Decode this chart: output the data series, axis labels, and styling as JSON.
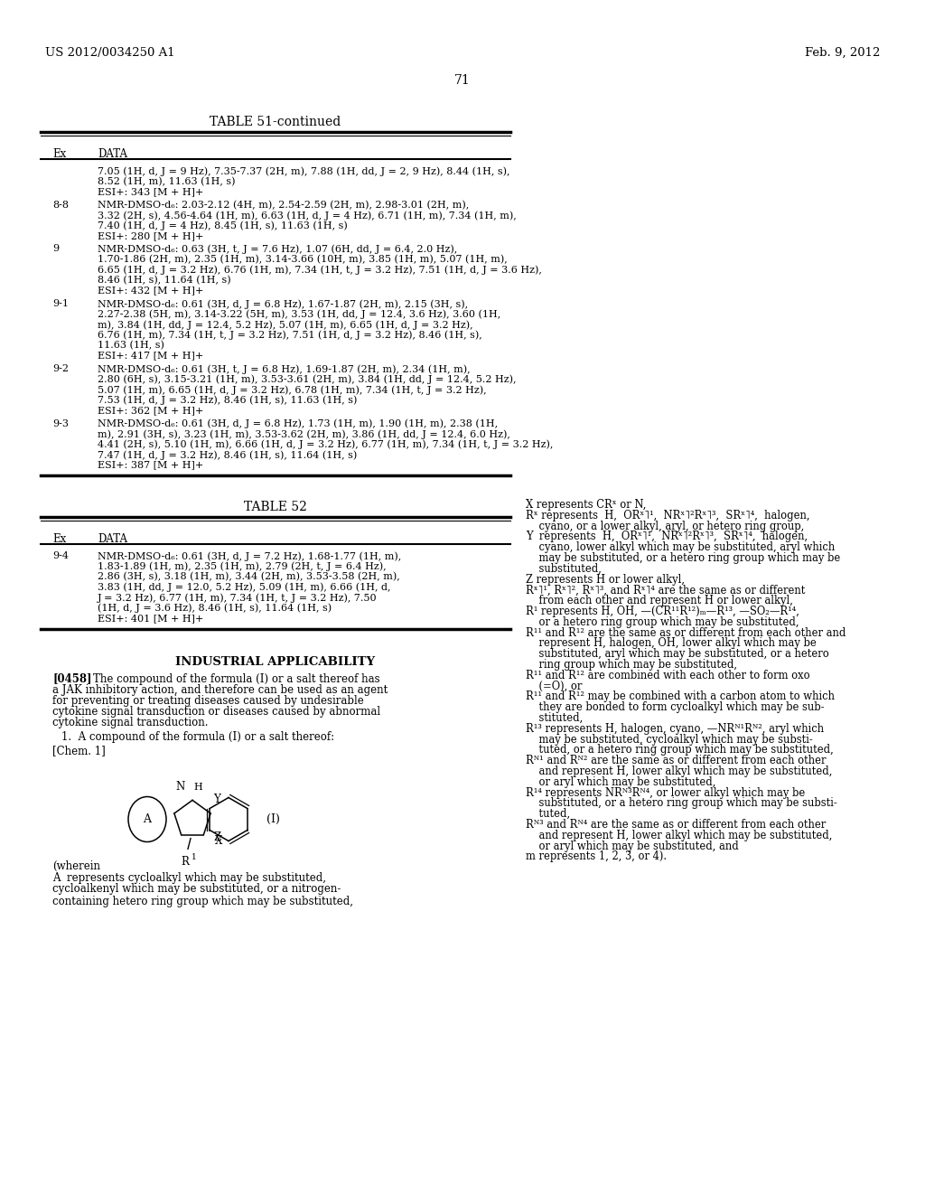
{
  "background_color": "#ffffff",
  "page_number": "71",
  "header_left": "US 2012/0034250 A1",
  "header_right": "Feb. 9, 2012",
  "table51_title": "TABLE 51-continued",
  "table51_rows": [
    {
      "ex": "",
      "data": [
        "7.05 (1H, d, J = 9 Hz), 7.35-7.37 (2H, m), 7.88 (1H, dd, J = 2, 9 Hz), 8.44 (1H, s),",
        "8.52 (1H, m), 11.63 (1H, s)",
        "ESI+: 343 [M + H]+"
      ]
    },
    {
      "ex": "8-8",
      "data": [
        "NMR-DMSO-d₆: 2.03-2.12 (4H, m), 2.54-2.59 (2H, m), 2.98-3.01 (2H, m),",
        "3.32 (2H, s), 4.56-4.64 (1H, m), 6.63 (1H, d, J = 4 Hz), 6.71 (1H, m), 7.34 (1H, m),",
        "7.40 (1H, d, J = 4 Hz), 8.45 (1H, s), 11.63 (1H, s)",
        "ESI+: 280 [M + H]+"
      ]
    },
    {
      "ex": "9",
      "data": [
        "NMR-DMSO-d₆: 0.63 (3H, t, J = 7.6 Hz), 1.07 (6H, dd, J = 6.4, 2.0 Hz),",
        "1.70-1.86 (2H, m), 2.35 (1H, m), 3.14-3.66 (10H, m), 3.85 (1H, m), 5.07 (1H, m),",
        "6.65 (1H, d, J = 3.2 Hz), 6.76 (1H, m), 7.34 (1H, t, J = 3.2 Hz), 7.51 (1H, d, J = 3.6 Hz),",
        "8.46 (1H, s), 11.64 (1H, s)",
        "ESI+: 432 [M + H]+"
      ]
    },
    {
      "ex": "9-1",
      "data": [
        "NMR-DMSO-d₆: 0.61 (3H, d, J = 6.8 Hz), 1.67-1.87 (2H, m), 2.15 (3H, s),",
        "2.27-2.38 (5H, m), 3.14-3.22 (5H, m), 3.53 (1H, dd, J = 12.4, 3.6 Hz), 3.60 (1H,",
        "m), 3.84 (1H, dd, J = 12.4, 5.2 Hz), 5.07 (1H, m), 6.65 (1H, d, J = 3.2 Hz),",
        "6.76 (1H, m), 7.34 (1H, t, J = 3.2 Hz), 7.51 (1H, d, J = 3.2 Hz), 8.46 (1H, s),",
        "11.63 (1H, s)",
        "ESI+: 417 [M + H]+"
      ]
    },
    {
      "ex": "9-2",
      "data": [
        "NMR-DMSO-d₆: 0.61 (3H, t, J = 6.8 Hz), 1.69-1.87 (2H, m), 2.34 (1H, m),",
        "2.80 (6H, s), 3.15-3.21 (1H, m), 3.53-3.61 (2H, m), 3.84 (1H, dd, J = 12.4, 5.2 Hz),",
        "5.07 (1H, m), 6.65 (1H, d, J = 3.2 Hz), 6.78 (1H, m), 7.34 (1H, t, J = 3.2 Hz),",
        "7.53 (1H, d, J = 3.2 Hz), 8.46 (1H, s), 11.63 (1H, s)",
        "ESI+: 362 [M + H]+"
      ]
    },
    {
      "ex": "9-3",
      "data": [
        "NMR-DMSO-d₆: 0.61 (3H, d, J = 6.8 Hz), 1.73 (1H, m), 1.90 (1H, m), 2.38 (1H,",
        "m), 2.91 (3H, s), 3.23 (1H, m), 3.53-3.62 (2H, m), 3.86 (1H, dd, J = 12.4, 6.0 Hz),",
        "4.41 (2H, s), 5.10 (1H, m), 6.66 (1H, d, J = 3.2 Hz), 6.77 (1H, m), 7.34 (1H, t, J = 3.2 Hz),",
        "7.47 (1H, d, J = 3.2 Hz), 8.46 (1H, s), 11.64 (1H, s)",
        "ESI+: 387 [M + H]+"
      ]
    }
  ],
  "table52_title": "TABLE 52",
  "table52_rows": [
    {
      "ex": "9-4",
      "data": [
        "NMR-DMSO-d₆: 0.61 (3H, d, J = 7.2 Hz), 1.68-1.77 (1H, m),",
        "1.83-1.89 (1H, m), 2.35 (1H, m), 2.79 (2H, t, J = 6.4 Hz),",
        "2.86 (3H, s), 3.18 (1H, m), 3.44 (2H, m), 3.53-3.58 (2H, m),",
        "3.83 (1H, dd, J = 12.0, 5.2 Hz), 5.09 (1H, m), 6.66 (1H, d,",
        "J = 3.2 Hz), 6.77 (1H, m), 7.34 (1H, t, J = 3.2 Hz), 7.50",
        "(1H, d, J = 3.6 Hz), 8.46 (1H, s), 11.64 (1H, s)",
        "ESI+: 401 [M + H]+"
      ]
    }
  ],
  "right_col_lines": [
    "X represents CRˣ or N,",
    "Rˣ represents  H,  ORˣ˥¹,  NRˣ˥²Rˣ˥³,  SRˣ˥⁴,  halogen,",
    "    cyano, or a lower alkyl, aryl, or hetero ring group,",
    "Y  represents  H,  ORˣ˥¹,  NRˣ˥²Rˣ˥³,  SRˣ˥⁴,  halogen,",
    "    cyano, lower alkyl which may be substituted, aryl which",
    "    may be substituted, or a hetero ring group which may be",
    "    substituted,",
    "Z represents H or lower alkyl,",
    "Rˣ˥¹, Rˣ˥², Rˣ˥³, and Rˣ˥⁴ are the same as or different",
    "    from each other and represent H or lower alkyl,",
    "R¹ represents H, OH, —(CR¹¹R¹²)ₘ—R¹³, —SO₂—R¹⁴,",
    "    or a hetero ring group which may be substituted,",
    "R¹¹ and R¹² are the same as or different from each other and",
    "    represent H, halogen, OH, lower alkyl which may be",
    "    substituted, aryl which may be substituted, or a hetero",
    "    ring group which may be substituted,",
    "R¹¹ and R¹² are combined with each other to form oxo",
    "    (=O), or",
    "R¹¹ and R¹² may be combined with a carbon atom to which",
    "    they are bonded to form cycloalkyl which may be sub-",
    "    stituted,",
    "R¹³ represents H, halogen, cyano, —NRᴺ¹Rᴺ², aryl which",
    "    may be substituted, cycloalkyl which may be substi-",
    "    tuted, or a hetero ring group which may be substituted,",
    "Rᴺ¹ and Rᴺ² are the same as or different from each other",
    "    and represent H, lower alkyl which may be substituted,",
    "    or aryl which may be substituted,",
    "R¹⁴ represents NRᴺ³Rᴺ⁴, or lower alkyl which may be",
    "    substituted, or a hetero ring group which may be substi-",
    "    tuted,",
    "Rᴺ³ and Rᴺ⁴ are the same as or different from each other",
    "    and represent H, lower alkyl which may be substituted,",
    "    or aryl which may be substituted, and",
    "m represents 1, 2, 3, or 4)."
  ],
  "wherein_text": "(wherein",
  "A_text": [
    "A  represents cycloalkyl which may be substituted,",
    "cycloalkenyl which may be substituted, or a nitrogen-",
    "containing hetero ring group which may be substituted,"
  ]
}
